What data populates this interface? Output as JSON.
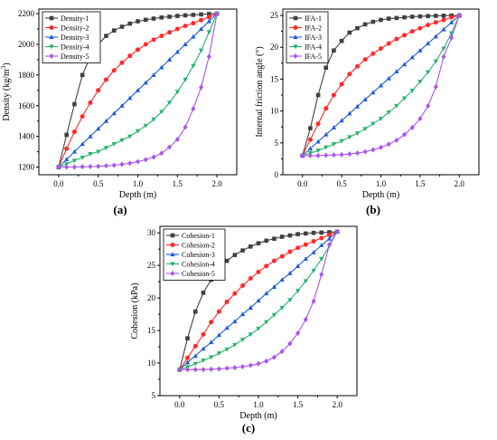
{
  "chart_data": [
    {
      "type": "line",
      "caption": "(a)",
      "xlabel": "Depth (m)",
      "ylabel": "Density (kg/m",
      "ylabel_sup": "3",
      "ylabel_tail": ")",
      "xlim": [
        -0.25,
        2.25
      ],
      "ylim": [
        1150,
        2230
      ],
      "xticks": [
        "0.0",
        "0.5",
        "1.0",
        "1.5",
        "2.0"
      ],
      "yticks": [
        "1200",
        "1400",
        "1600",
        "1800",
        "2000",
        "2200"
      ],
      "legend_position": "top-left",
      "series": [
        {
          "name": "Density-1",
          "color": "#404040",
          "marker": "square",
          "x": [
            0.0,
            0.1,
            0.2,
            0.3,
            0.4,
            0.5,
            0.6,
            0.7,
            0.8,
            0.9,
            1.0,
            1.1,
            1.2,
            1.3,
            1.4,
            1.5,
            1.6,
            1.7,
            1.8,
            1.9,
            2.0
          ],
          "y": [
            1200,
            1410,
            1610,
            1800,
            1920,
            2000,
            2055,
            2090,
            2115,
            2135,
            2150,
            2160,
            2168,
            2175,
            2180,
            2185,
            2189,
            2192,
            2195,
            2198,
            2200
          ]
        },
        {
          "name": "Density-2",
          "color": "#ff2a2a",
          "marker": "circle",
          "x": [
            0.0,
            0.1,
            0.2,
            0.3,
            0.4,
            0.5,
            0.6,
            0.7,
            0.8,
            0.9,
            1.0,
            1.1,
            1.2,
            1.3,
            1.4,
            1.5,
            1.6,
            1.7,
            1.8,
            1.9,
            2.0
          ],
          "y": [
            1200,
            1320,
            1430,
            1530,
            1620,
            1700,
            1770,
            1830,
            1880,
            1925,
            1965,
            2000,
            2030,
            2055,
            2078,
            2100,
            2120,
            2138,
            2158,
            2178,
            2200
          ]
        },
        {
          "name": "Density-3",
          "color": "#1e5cd6",
          "marker": "triangle-up",
          "x": [
            0.0,
            0.1,
            0.2,
            0.3,
            0.4,
            0.5,
            0.6,
            0.7,
            0.8,
            0.9,
            1.0,
            1.1,
            1.2,
            1.3,
            1.4,
            1.5,
            1.6,
            1.7,
            1.8,
            1.9,
            2.0
          ],
          "y": [
            1200,
            1250,
            1300,
            1350,
            1400,
            1450,
            1500,
            1550,
            1600,
            1650,
            1700,
            1750,
            1800,
            1850,
            1900,
            1950,
            2000,
            2050,
            2100,
            2150,
            2200
          ]
        },
        {
          "name": "Density-4",
          "color": "#27b36a",
          "marker": "triangle-down",
          "x": [
            0.0,
            0.1,
            0.2,
            0.3,
            0.4,
            0.5,
            0.6,
            0.7,
            0.8,
            0.9,
            1.0,
            1.1,
            1.2,
            1.3,
            1.4,
            1.5,
            1.6,
            1.7,
            1.8,
            1.9,
            2.0
          ],
          "y": [
            1200,
            1220,
            1242,
            1262,
            1285,
            1300,
            1325,
            1350,
            1375,
            1400,
            1435,
            1470,
            1510,
            1560,
            1620,
            1690,
            1770,
            1860,
            1960,
            2080,
            2200
          ]
        },
        {
          "name": "Density-5",
          "color": "#a855f0",
          "marker": "diamond",
          "x": [
            0.0,
            0.1,
            0.2,
            0.3,
            0.4,
            0.5,
            0.6,
            0.7,
            0.8,
            0.9,
            1.0,
            1.1,
            1.2,
            1.3,
            1.4,
            1.5,
            1.6,
            1.7,
            1.8,
            1.9,
            2.0
          ],
          "y": [
            1200,
            1200,
            1200,
            1202,
            1203,
            1205,
            1208,
            1212,
            1218,
            1225,
            1235,
            1248,
            1265,
            1290,
            1330,
            1380,
            1460,
            1580,
            1720,
            1920,
            2200
          ]
        }
      ]
    },
    {
      "type": "line",
      "caption": "(b)",
      "xlabel": "Depth (m)",
      "ylabel": "Internal friction angle (°)",
      "xlim": [
        -0.25,
        2.25
      ],
      "ylim": [
        0,
        26
      ],
      "xticks": [
        "0.0",
        "0.5",
        "1.0",
        "1.5",
        "2.0"
      ],
      "yticks": [
        "0",
        "5",
        "10",
        "15",
        "20",
        "25"
      ],
      "legend_position": "top-left",
      "series": [
        {
          "name": "IFA-1",
          "color": "#404040",
          "marker": "square",
          "x": [
            0.0,
            0.1,
            0.2,
            0.3,
            0.4,
            0.5,
            0.6,
            0.7,
            0.8,
            0.9,
            1.0,
            1.1,
            1.2,
            1.3,
            1.4,
            1.5,
            1.6,
            1.7,
            1.8,
            1.9,
            2.0
          ],
          "y": [
            3,
            7.3,
            12.5,
            16.8,
            19.5,
            21.0,
            22.3,
            23.0,
            23.6,
            24.0,
            24.3,
            24.5,
            24.6,
            24.7,
            24.8,
            24.85,
            24.9,
            24.93,
            24.96,
            24.98,
            25
          ]
        },
        {
          "name": "IFA-2",
          "color": "#ff2a2a",
          "marker": "circle",
          "x": [
            0.0,
            0.1,
            0.2,
            0.3,
            0.4,
            0.5,
            0.6,
            0.7,
            0.8,
            0.9,
            1.0,
            1.1,
            1.2,
            1.3,
            1.4,
            1.5,
            1.6,
            1.7,
            1.8,
            1.9,
            2.0
          ],
          "y": [
            3,
            5.5,
            8.0,
            10.4,
            12.5,
            14.2,
            15.8,
            17.0,
            18.1,
            19.0,
            19.8,
            20.6,
            21.3,
            21.9,
            22.5,
            23.0,
            23.5,
            23.9,
            24.3,
            24.7,
            25
          ]
        },
        {
          "name": "IFA-3",
          "color": "#1e5cd6",
          "marker": "triangle-up",
          "x": [
            0.0,
            0.1,
            0.2,
            0.3,
            0.4,
            0.5,
            0.6,
            0.7,
            0.8,
            0.9,
            1.0,
            1.1,
            1.2,
            1.3,
            1.4,
            1.5,
            1.6,
            1.7,
            1.8,
            1.9,
            2.0
          ],
          "y": [
            3,
            4.1,
            5.2,
            6.3,
            7.4,
            8.5,
            9.6,
            10.7,
            11.8,
            12.9,
            14.0,
            15.1,
            16.2,
            17.3,
            18.4,
            19.5,
            20.6,
            21.7,
            22.8,
            23.9,
            25
          ]
        },
        {
          "name": "IFA-4",
          "color": "#27b36a",
          "marker": "triangle-down",
          "x": [
            0.0,
            0.1,
            0.2,
            0.3,
            0.4,
            0.5,
            0.6,
            0.7,
            0.8,
            0.9,
            1.0,
            1.1,
            1.2,
            1.3,
            1.4,
            1.5,
            1.6,
            1.7,
            1.8,
            1.9,
            2.0
          ],
          "y": [
            3,
            3.4,
            3.8,
            4.3,
            4.8,
            5.3,
            5.9,
            6.5,
            7.2,
            8.0,
            8.8,
            9.8,
            10.8,
            12.0,
            13.2,
            14.6,
            16.1,
            17.8,
            19.8,
            22.2,
            25
          ]
        },
        {
          "name": "IFA-5",
          "color": "#a855f0",
          "marker": "diamond",
          "x": [
            0.0,
            0.1,
            0.2,
            0.3,
            0.4,
            0.5,
            0.6,
            0.7,
            0.8,
            0.9,
            1.0,
            1.1,
            1.2,
            1.3,
            1.4,
            1.5,
            1.6,
            1.7,
            1.8,
            1.9,
            2.0
          ],
          "y": [
            3,
            3,
            3,
            3.05,
            3.1,
            3.15,
            3.25,
            3.4,
            3.6,
            3.9,
            4.3,
            4.8,
            5.4,
            6.3,
            7.4,
            8.8,
            10.8,
            13.8,
            18.5,
            21.5,
            25
          ]
        }
      ]
    },
    {
      "type": "line",
      "caption": "(c)",
      "xlabel": "Depth (m)",
      "ylabel": "Cohesion (kPa)",
      "xlim": [
        -0.25,
        2.25
      ],
      "ylim": [
        5,
        31
      ],
      "xticks": [
        "0.0",
        "0.5",
        "1.0",
        "1.5",
        "2.0"
      ],
      "yticks": [
        "5",
        "10",
        "15",
        "20",
        "25",
        "30"
      ],
      "legend_position": "top-left",
      "series": [
        {
          "name": "Cohesion-1",
          "color": "#404040",
          "marker": "square",
          "x": [
            0.0,
            0.1,
            0.2,
            0.3,
            0.4,
            0.5,
            0.6,
            0.7,
            0.8,
            0.9,
            1.0,
            1.1,
            1.2,
            1.3,
            1.4,
            1.5,
            1.6,
            1.7,
            1.8,
            1.9,
            2.0
          ],
          "y": [
            9,
            13.8,
            17.9,
            20.8,
            22.8,
            24.5,
            25.7,
            26.6,
            27.3,
            27.9,
            28.4,
            28.8,
            29.1,
            29.4,
            29.6,
            29.8,
            29.9,
            30.0,
            30.05,
            30.1,
            30.2
          ]
        },
        {
          "name": "Cohesion-2",
          "color": "#ff2a2a",
          "marker": "circle",
          "x": [
            0.0,
            0.1,
            0.2,
            0.3,
            0.4,
            0.5,
            0.6,
            0.7,
            0.8,
            0.9,
            1.0,
            1.1,
            1.2,
            1.3,
            1.4,
            1.5,
            1.6,
            1.7,
            1.8,
            1.9,
            2.0
          ],
          "y": [
            9,
            10.8,
            12.6,
            14.4,
            16.3,
            17.9,
            19.4,
            20.7,
            21.9,
            23.0,
            24.0,
            24.9,
            25.7,
            26.4,
            27.1,
            27.7,
            28.2,
            28.7,
            29.2,
            29.7,
            30.2
          ]
        },
        {
          "name": "Cohesion-3",
          "color": "#1e5cd6",
          "marker": "triangle-up",
          "x": [
            0.0,
            0.1,
            0.2,
            0.3,
            0.4,
            0.5,
            0.6,
            0.7,
            0.8,
            0.9,
            1.0,
            1.1,
            1.2,
            1.3,
            1.4,
            1.5,
            1.6,
            1.7,
            1.8,
            1.9,
            2.0
          ],
          "y": [
            9,
            10.1,
            11.1,
            12.2,
            13.2,
            14.3,
            15.4,
            16.4,
            17.5,
            18.5,
            19.6,
            20.7,
            21.7,
            22.8,
            23.8,
            24.9,
            26.0,
            27.0,
            28.1,
            29.1,
            30.2
          ]
        },
        {
          "name": "Cohesion-4",
          "color": "#27b36a",
          "marker": "triangle-down",
          "x": [
            0.0,
            0.1,
            0.2,
            0.3,
            0.4,
            0.5,
            0.6,
            0.7,
            0.8,
            0.9,
            1.0,
            1.1,
            1.2,
            1.3,
            1.4,
            1.5,
            1.6,
            1.7,
            1.8,
            1.9,
            2.0
          ],
          "y": [
            9,
            9.4,
            9.9,
            10.4,
            10.9,
            11.5,
            12.1,
            12.8,
            13.6,
            14.4,
            15.3,
            16.3,
            17.4,
            18.5,
            19.7,
            21.1,
            22.6,
            24.2,
            26.0,
            28.0,
            30.2
          ]
        },
        {
          "name": "Cohesion-5",
          "color": "#a855f0",
          "marker": "diamond",
          "x": [
            0.0,
            0.1,
            0.2,
            0.3,
            0.4,
            0.5,
            0.6,
            0.7,
            0.8,
            0.9,
            1.0,
            1.1,
            1.2,
            1.3,
            1.4,
            1.5,
            1.6,
            1.7,
            1.8,
            1.9,
            2.0
          ],
          "y": [
            9,
            9,
            9,
            9,
            9.05,
            9.1,
            9.2,
            9.3,
            9.45,
            9.65,
            9.9,
            10.3,
            10.9,
            11.8,
            13.0,
            14.6,
            16.7,
            19.5,
            23.6,
            28.2,
            30.2
          ]
        }
      ]
    }
  ]
}
